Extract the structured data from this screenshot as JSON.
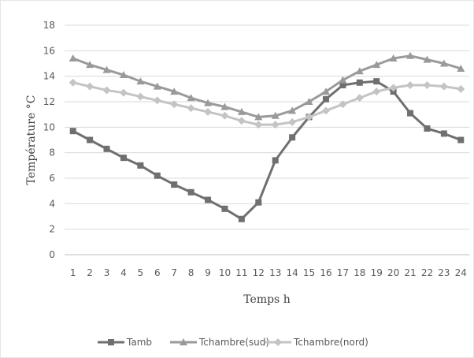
{
  "chart_data": {
    "type": "line",
    "title": "",
    "xlabel": "Temps h",
    "ylabel": "Température °C",
    "x": [
      1,
      2,
      3,
      4,
      5,
      6,
      7,
      8,
      9,
      10,
      11,
      12,
      13,
      14,
      15,
      16,
      17,
      18,
      19,
      20,
      21,
      22,
      23,
      24
    ],
    "x_tick_labels": [
      "1",
      "2",
      "3",
      "4",
      "5",
      "6",
      "7",
      "8",
      "9",
      "10",
      "11",
      "12",
      "13",
      "14",
      "15",
      "16",
      "17",
      "18",
      "19",
      "20",
      "21",
      "22",
      "23",
      "24"
    ],
    "ylim": [
      0,
      18
    ],
    "y_ticks": [
      0,
      2,
      4,
      6,
      8,
      10,
      12,
      14,
      16,
      18
    ],
    "y_tick_labels": [
      "0",
      "2",
      "4",
      "6",
      "8",
      "10",
      "12",
      "14",
      "16",
      "18"
    ],
    "grid": true,
    "legend_position": "bottom",
    "series": [
      {
        "name": "Tamb",
        "color": "#6f6f6f",
        "marker": "square",
        "values": [
          9.7,
          9.0,
          8.3,
          7.6,
          7.0,
          6.2,
          5.5,
          4.9,
          4.3,
          3.6,
          2.8,
          4.1,
          7.4,
          9.2,
          10.8,
          12.2,
          13.3,
          13.5,
          13.6,
          12.8,
          11.1,
          9.9,
          9.5,
          9.0
        ]
      },
      {
        "name": "Tchambre(sud)",
        "color": "#9a9a9a",
        "marker": "triangle",
        "values": [
          15.4,
          14.9,
          14.5,
          14.1,
          13.6,
          13.2,
          12.8,
          12.3,
          11.9,
          11.6,
          11.2,
          10.8,
          10.9,
          11.3,
          12.0,
          12.8,
          13.7,
          14.4,
          14.9,
          15.4,
          15.6,
          15.3,
          15.0,
          14.6
        ]
      },
      {
        "name": "Tchambre(nord)",
        "color": "#c4c4c4",
        "marker": "diamond",
        "values": [
          13.5,
          13.2,
          12.9,
          12.7,
          12.4,
          12.1,
          11.8,
          11.5,
          11.2,
          10.9,
          10.5,
          10.2,
          10.2,
          10.4,
          10.8,
          11.3,
          11.8,
          12.3,
          12.8,
          13.1,
          13.3,
          13.3,
          13.2,
          13.0
        ]
      }
    ]
  }
}
